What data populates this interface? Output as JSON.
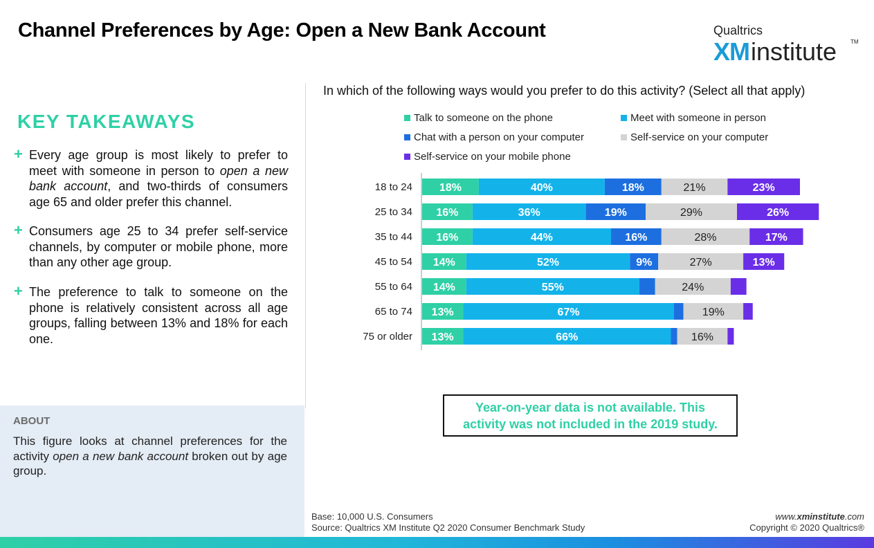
{
  "header": {
    "title": "Channel Preferences by Age: Open a New Bank Account",
    "logo_top": "Qualtrics",
    "logo_xm": "XM",
    "logo_institute": "institute",
    "logo_tm": "TM"
  },
  "takeaways": {
    "heading": "KEY TAKEAWAYS",
    "items": [
      {
        "before": "Every age group is most likely to prefer to meet with someone in person to ",
        "em": "open a new bank account",
        "after": ", and two-thirds of consumers age 65 and older prefer this channel."
      },
      {
        "before": "Consumers age 25 to 34 prefer self-service channels, by computer or mobile phone, more than any other age group.",
        "em": "",
        "after": ""
      },
      {
        "before": "The preference to talk to someone on the phone is relatively consistent across all age groups, falling between 13% and 18% for each one.",
        "em": "",
        "after": ""
      }
    ]
  },
  "about": {
    "heading": "ABOUT",
    "before": "This figure looks at channel preferences for the activity ",
    "em": "open a new bank account",
    "after": " broken out by age group."
  },
  "note": {
    "line1": "Year-on-year data is not available. This",
    "line2": "activity was not included in the 2019 study."
  },
  "footer": {
    "base": "Base: 10,000 U.S. Consumers",
    "source": "Source: Qualtrics XM Institute Q2 2020 Consumer Benchmark Study",
    "url_prefix": "www.",
    "url_bold": "xminstitute",
    "url_suffix": ".com",
    "copyright": "Copyright © 2020 Qualtrics®"
  },
  "chart_data": {
    "type": "bar",
    "orientation": "horizontal-stacked",
    "title": "In which of the following ways would you prefer to do this activity? (Select all that apply)",
    "categories": [
      "18 to 24",
      "25 to 34",
      "35 to 44",
      "45 to 54",
      "55 to 64",
      "65 to 74",
      "75 or older"
    ],
    "series": [
      {
        "name": "Talk to someone on the phone",
        "color": "#2fd0a6",
        "values": [
          18,
          16,
          16,
          14,
          14,
          13,
          13
        ],
        "labels": [
          "18%",
          "16%",
          "16%",
          "14%",
          "14%",
          "13%",
          "13%"
        ],
        "label_color": "#ffffff"
      },
      {
        "name": "Meet with someone in person",
        "color": "#13b3ea",
        "values": [
          40,
          36,
          44,
          52,
          55,
          67,
          66
        ],
        "labels": [
          "40%",
          "36%",
          "44%",
          "52%",
          "55%",
          "67%",
          "66%"
        ],
        "label_color": "#ffffff"
      },
      {
        "name": "Chat with a person on your computer",
        "color": "#1d6fe0",
        "values": [
          18,
          19,
          16,
          9,
          5,
          3,
          2
        ],
        "labels": [
          "18%",
          "19%",
          "16%",
          "9%",
          "",
          "",
          ""
        ],
        "label_color": "#ffffff"
      },
      {
        "name": "Self-service on your computer",
        "color": "#d4d4d4",
        "values": [
          21,
          29,
          28,
          27,
          24,
          19,
          16
        ],
        "labels": [
          "21%",
          "29%",
          "28%",
          "27%",
          "24%",
          "19%",
          "16%"
        ],
        "label_color": "#222222"
      },
      {
        "name": "Self-service on your mobile phone",
        "color": "#6a2ee8",
        "values": [
          23,
          26,
          17,
          13,
          5,
          3,
          2
        ],
        "labels": [
          "23%",
          "26%",
          "17%",
          "13%",
          "",
          "",
          ""
        ],
        "label_color": "#ffffff"
      }
    ],
    "legend_position": "top",
    "grid": false
  }
}
